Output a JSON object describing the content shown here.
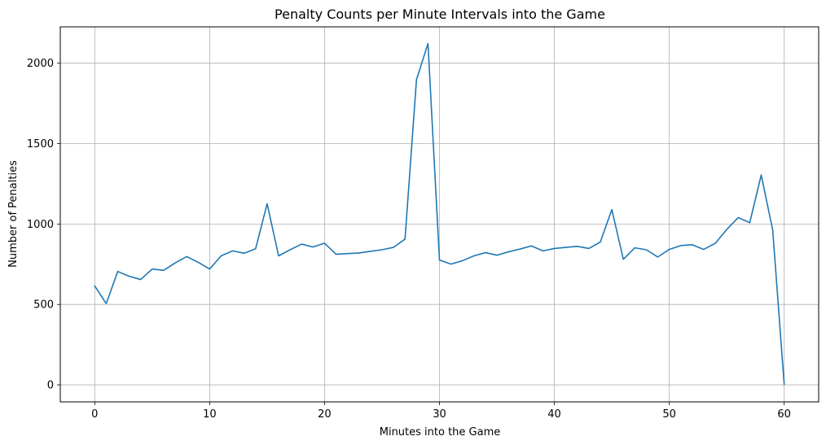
{
  "chart_data": {
    "type": "line",
    "title": "Penalty Counts per Minute Intervals into the Game",
    "xlabel": "Minutes into the Game",
    "ylabel": "Number of Penalties",
    "xlim": [
      -3,
      63
    ],
    "ylim": [
      -106,
      2226
    ],
    "xticks": [
      0,
      10,
      20,
      30,
      40,
      50,
      60
    ],
    "yticks": [
      0,
      500,
      1000,
      1500,
      2000
    ],
    "grid": true,
    "legend": "none",
    "series": [
      {
        "color": "#1f77b4",
        "x": [
          0,
          1,
          2,
          3,
          4,
          5,
          6,
          7,
          8,
          9,
          10,
          11,
          12,
          13,
          14,
          15,
          16,
          17,
          18,
          19,
          20,
          21,
          22,
          23,
          24,
          25,
          26,
          27,
          28,
          29,
          30,
          31,
          32,
          33,
          34,
          35,
          36,
          37,
          38,
          39,
          40,
          41,
          42,
          43,
          44,
          45,
          46,
          47,
          48,
          49,
          50,
          51,
          52,
          53,
          54,
          55,
          56,
          57,
          58,
          59,
          60
        ],
        "values": [
          615,
          505,
          705,
          675,
          655,
          720,
          712,
          758,
          798,
          762,
          720,
          802,
          833,
          818,
          846,
          1126,
          802,
          840,
          875,
          857,
          881,
          812,
          816,
          820,
          830,
          840,
          855,
          906,
          1898,
          2122,
          776,
          751,
          772,
          802,
          822,
          806,
          827,
          844,
          864,
          833,
          848,
          855,
          861,
          848,
          888,
          1090,
          781,
          852,
          840,
          795,
          842,
          866,
          871,
          842,
          880,
          966,
          1040,
          1008,
          1305,
          962,
          3
        ]
      }
    ]
  }
}
